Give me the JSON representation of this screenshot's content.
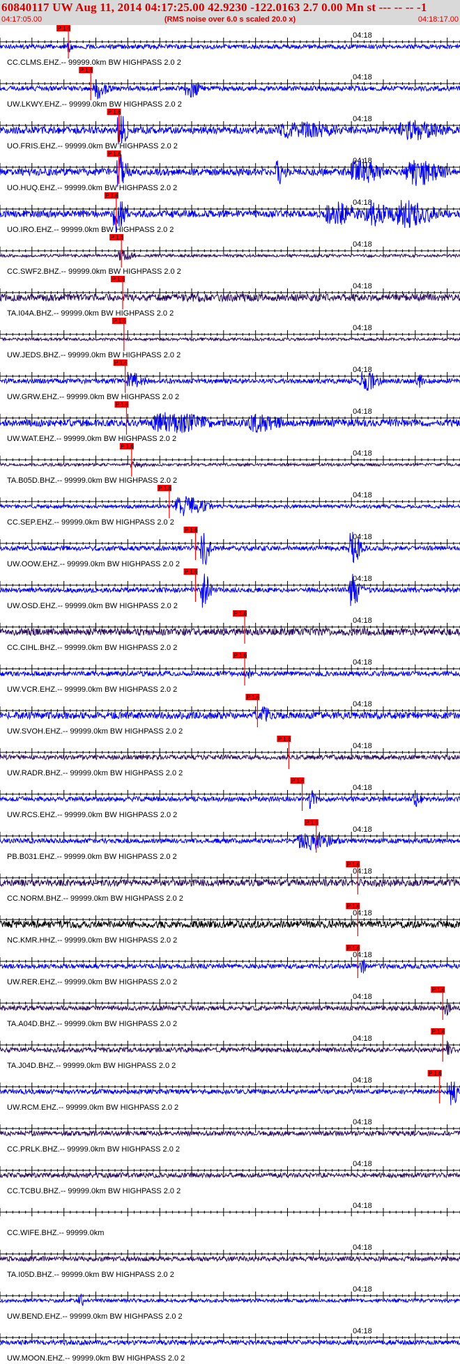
{
  "header": {
    "title": "60840117 UW Aug 11, 2014 04:17:25.00   42.9230 -122.0163  2.7 0.00 Mn st --- -- --  -1",
    "start_time": "04:17:05.00",
    "end_time": "04:18:17.00",
    "rms_note": "(RMS noise over 6.0 s scaled 20.0 x)"
  },
  "colors": {
    "trace_blue": "#0000ee",
    "trace_dark": "#2a0d5e",
    "trace_black": "#000000",
    "pick_red": "#ff0000",
    "header_bg": "#d9d9d9",
    "title_red": "#d40000"
  },
  "chart_data": {
    "type": "seismogram-record-section",
    "time_start": "04:17:05.00",
    "time_end": "04:18:17.00",
    "time_range_s": [
      0,
      72
    ],
    "tick_label": "04:18",
    "tick_label_time_s": 55,
    "pick_label": "P 1.6",
    "traces": [
      {
        "label": "CC.CLMS.EHZ.-- 99999.0km BW  HIGHPASS  2.0  2",
        "color": "blue",
        "pick_s": 10.7,
        "amp": 0.18,
        "events": [
          [
            10.7,
            0.9,
            0.5
          ]
        ]
      },
      {
        "label": "UW.LKWY.EHZ.-- 99999.0km BW  HIGHPASS  2.0  2",
        "color": "blue",
        "pick_s": 14.2,
        "amp": 0.2,
        "events": [
          [
            15.2,
            2.0,
            0.9
          ],
          [
            29.5,
            2.0,
            0.9
          ]
        ]
      },
      {
        "label": "UO.FRIS.EHZ.-- 99999.0km BW  HIGHPASS  2.0  2",
        "color": "blue",
        "pick_s": 18.6,
        "amp": 0.3,
        "events": [
          [
            18.6,
            1.4,
            1.6
          ],
          [
            46,
            8,
            0.8
          ],
          [
            64,
            6,
            0.9
          ]
        ]
      },
      {
        "label": "UO.HUQ.EHZ.-- 99999.0km BW  HIGHPASS  2.0  2",
        "color": "blue",
        "pick_s": 18.6,
        "amp": 0.3,
        "events": [
          [
            18.6,
            1.4,
            1.6
          ],
          [
            43.5,
            1.2,
            1.2
          ],
          [
            56,
            4,
            1.2
          ],
          [
            65,
            5,
            1.2
          ]
        ]
      },
      {
        "label": "UO.IRO.EHZ.-- 99999.0km BW  HIGHPASS  2.0  2",
        "color": "blue",
        "pick_s": 18.2,
        "amp": 0.3,
        "events": [
          [
            18.2,
            1.6,
            1.6
          ],
          [
            52,
            4,
            1.2
          ],
          [
            58,
            3,
            1.2
          ],
          [
            63,
            6,
            1.2
          ]
        ]
      },
      {
        "label": "CC.SWF2.BHZ.-- 99999.0km BW  HIGHPASS  2.0  2",
        "color": "dark",
        "pick_s": 19.0,
        "amp": 0.12,
        "events": [
          [
            19.0,
            2.2,
            0.5
          ]
        ]
      },
      {
        "label": "TA.I04A.BHZ.-- 99999.0km BW  HIGHPASS  2.0  2",
        "color": "dark",
        "pick_s": 19.2,
        "amp": 0.3,
        "events": [
          [
            30,
            30,
            0.35
          ]
        ]
      },
      {
        "label": "UW.JEDS.BHZ.-- 99999.0km BW  HIGHPASS  2.0  2",
        "color": "dark",
        "pick_s": 19.4,
        "amp": 0.12,
        "events": []
      },
      {
        "label": "UW.GRW.EHZ.-- 99999.0km BW  HIGHPASS  2.0  2",
        "color": "blue",
        "pick_s": 19.6,
        "amp": 0.2,
        "events": [
          [
            20.5,
            2.5,
            0.8
          ],
          [
            57,
            2.5,
            0.9
          ],
          [
            65.5,
            1.0,
            0.6
          ]
        ]
      },
      {
        "label": "UW.WAT.EHZ.-- 99999.0km BW  HIGHPASS  2.0  2",
        "color": "blue",
        "pick_s": 19.8,
        "amp": 0.3,
        "events": [
          [
            26,
            8,
            0.95
          ],
          [
            40,
            5,
            0.8
          ]
        ]
      },
      {
        "label": "TA.B05D.BHZ.-- 99999.0km BW  HIGHPASS  2.0  2",
        "color": "dark",
        "pick_s": 20.6,
        "amp": 0.12,
        "events": [
          [
            21,
            2,
            0.3
          ]
        ]
      },
      {
        "label": "CC.SEP.EHZ.-- 99999.0km BW  HIGHPASS  2.0  2",
        "color": "blue",
        "pick_s": 26.5,
        "amp": 0.15,
        "events": [
          [
            28.5,
            4,
            0.95
          ]
        ]
      },
      {
        "label": "UW.OOW.EHZ.-- 99999.0km BW  HIGHPASS  2.0  2",
        "color": "blue",
        "pick_s": 30.6,
        "amp": 0.2,
        "events": [
          [
            31.8,
            1.2,
            1.6
          ],
          [
            55,
            1.5,
            1.6
          ]
        ]
      },
      {
        "label": "UW.OSD.EHZ.-- 99999.0km BW  HIGHPASS  2.0  2",
        "color": "blue",
        "pick_s": 30.6,
        "amp": 0.2,
        "events": [
          [
            31.8,
            1.2,
            1.6
          ],
          [
            55,
            1.5,
            1.6
          ]
        ]
      },
      {
        "label": "CC.CIHL.BHZ.-- 99999.0km BW  HIGHPASS  2.0  2",
        "color": "dark",
        "pick_s": 38.3,
        "amp": 0.3,
        "events": []
      },
      {
        "label": "UW.VCR.EHZ.-- 99999.0km BW  HIGHPASS  2.0  2",
        "color": "blue",
        "pick_s": 38.3,
        "amp": 0.2,
        "events": [
          [
            38.6,
            1.0,
            0.5
          ]
        ]
      },
      {
        "label": "UW.SVOH.EHZ.-- 99999.0km BW  HIGHPASS  2.0  2",
        "color": "blue",
        "pick_s": 40.3,
        "amp": 0.3,
        "events": [
          [
            41.3,
            1.2,
            0.9
          ]
        ]
      },
      {
        "label": "UW.RADR.BHZ.-- 99999.0km BW  HIGHPASS  2.0  2",
        "color": "dark",
        "pick_s": 45.2,
        "amp": 0.2,
        "events": []
      },
      {
        "label": "UW.RCS.EHZ.-- 99999.0km BW  HIGHPASS  2.0  2",
        "color": "blue",
        "pick_s": 47.3,
        "amp": 0.2,
        "events": [
          [
            48.6,
            1.0,
            0.9
          ],
          [
            65,
            1.2,
            0.7
          ]
        ]
      },
      {
        "label": "PB.B031.EHZ.-- 99999.0km BW  HIGHPASS  2.0  2",
        "color": "blue",
        "pick_s": 49.5,
        "amp": 0.2,
        "events": [
          [
            48,
            5,
            0.8
          ]
        ]
      },
      {
        "label": "CC.NORM.BHZ.-- 99999.0km BW  HIGHPASS  2.0  2",
        "color": "dark",
        "pick_s": 56.0,
        "amp": 0.3,
        "events": [
          [
            59,
            5,
            0.35
          ]
        ]
      },
      {
        "label": "NC.KMR.HHZ.-- 99999.0km BW  HIGHPASS  2.0  2",
        "color": "black",
        "pick_s": 56.0,
        "amp": 0.3,
        "events": []
      },
      {
        "label": "UW.RER.EHZ.-- 99999.0km BW  HIGHPASS  2.0  2",
        "color": "blue",
        "pick_s": 56.0,
        "amp": 0.2,
        "events": [
          [
            56.6,
            1.0,
            0.7
          ]
        ]
      },
      {
        "label": "TA.A04D.BHZ.-- 99999.0km BW  HIGHPASS  2.0  2",
        "color": "dark",
        "pick_s": 69.3,
        "amp": 0.2,
        "events": [
          [
            69.8,
            0.8,
            0.7
          ]
        ]
      },
      {
        "label": "TA.J04D.BHZ.-- 99999.0km BW  HIGHPASS  2.0  2",
        "color": "dark",
        "pick_s": 69.3,
        "amp": 0.2,
        "events": [
          [
            70,
            0.8,
            0.7
          ]
        ]
      },
      {
        "label": "UW.RCM.EHZ.-- 99999.0km BW  HIGHPASS  2.0  2",
        "color": "blue",
        "pick_s": 68.8,
        "amp": 0.2,
        "events": [
          [
            70.5,
            1.5,
            1.2
          ]
        ]
      },
      {
        "label": "CC.PRLK.BHZ.-- 99999.0km BW  HIGHPASS  2.0  2",
        "color": "dark",
        "pick_s": null,
        "amp": 0.2,
        "events": []
      },
      {
        "label": "CC.TCBU.BHZ.-- 99999.0km BW  HIGHPASS  2.0  2",
        "color": "dark",
        "pick_s": null,
        "amp": 0.2,
        "events": []
      },
      {
        "label": "CC.WIFE.BHZ.-- 99999.0km",
        "color": "dark",
        "pick_s": null,
        "amp": 0,
        "events": []
      },
      {
        "label": "TA.I05D.BHZ.-- 99999.0km BW  HIGHPASS  2.0  2",
        "color": "dark",
        "pick_s": null,
        "amp": 0.2,
        "events": []
      },
      {
        "label": "UW.BEND.EHZ.-- 99999.0km BW  HIGHPASS  2.0  2",
        "color": "blue",
        "pick_s": null,
        "amp": 0.15,
        "events": [
          [
            12.5,
            0.7,
            0.7
          ]
        ]
      },
      {
        "label": "UW.MOON.EHZ.-- 99999.0km BW  HIGHPASS  2.0  2",
        "color": "blue",
        "pick_s": null,
        "amp": 0.2,
        "events": []
      }
    ]
  }
}
